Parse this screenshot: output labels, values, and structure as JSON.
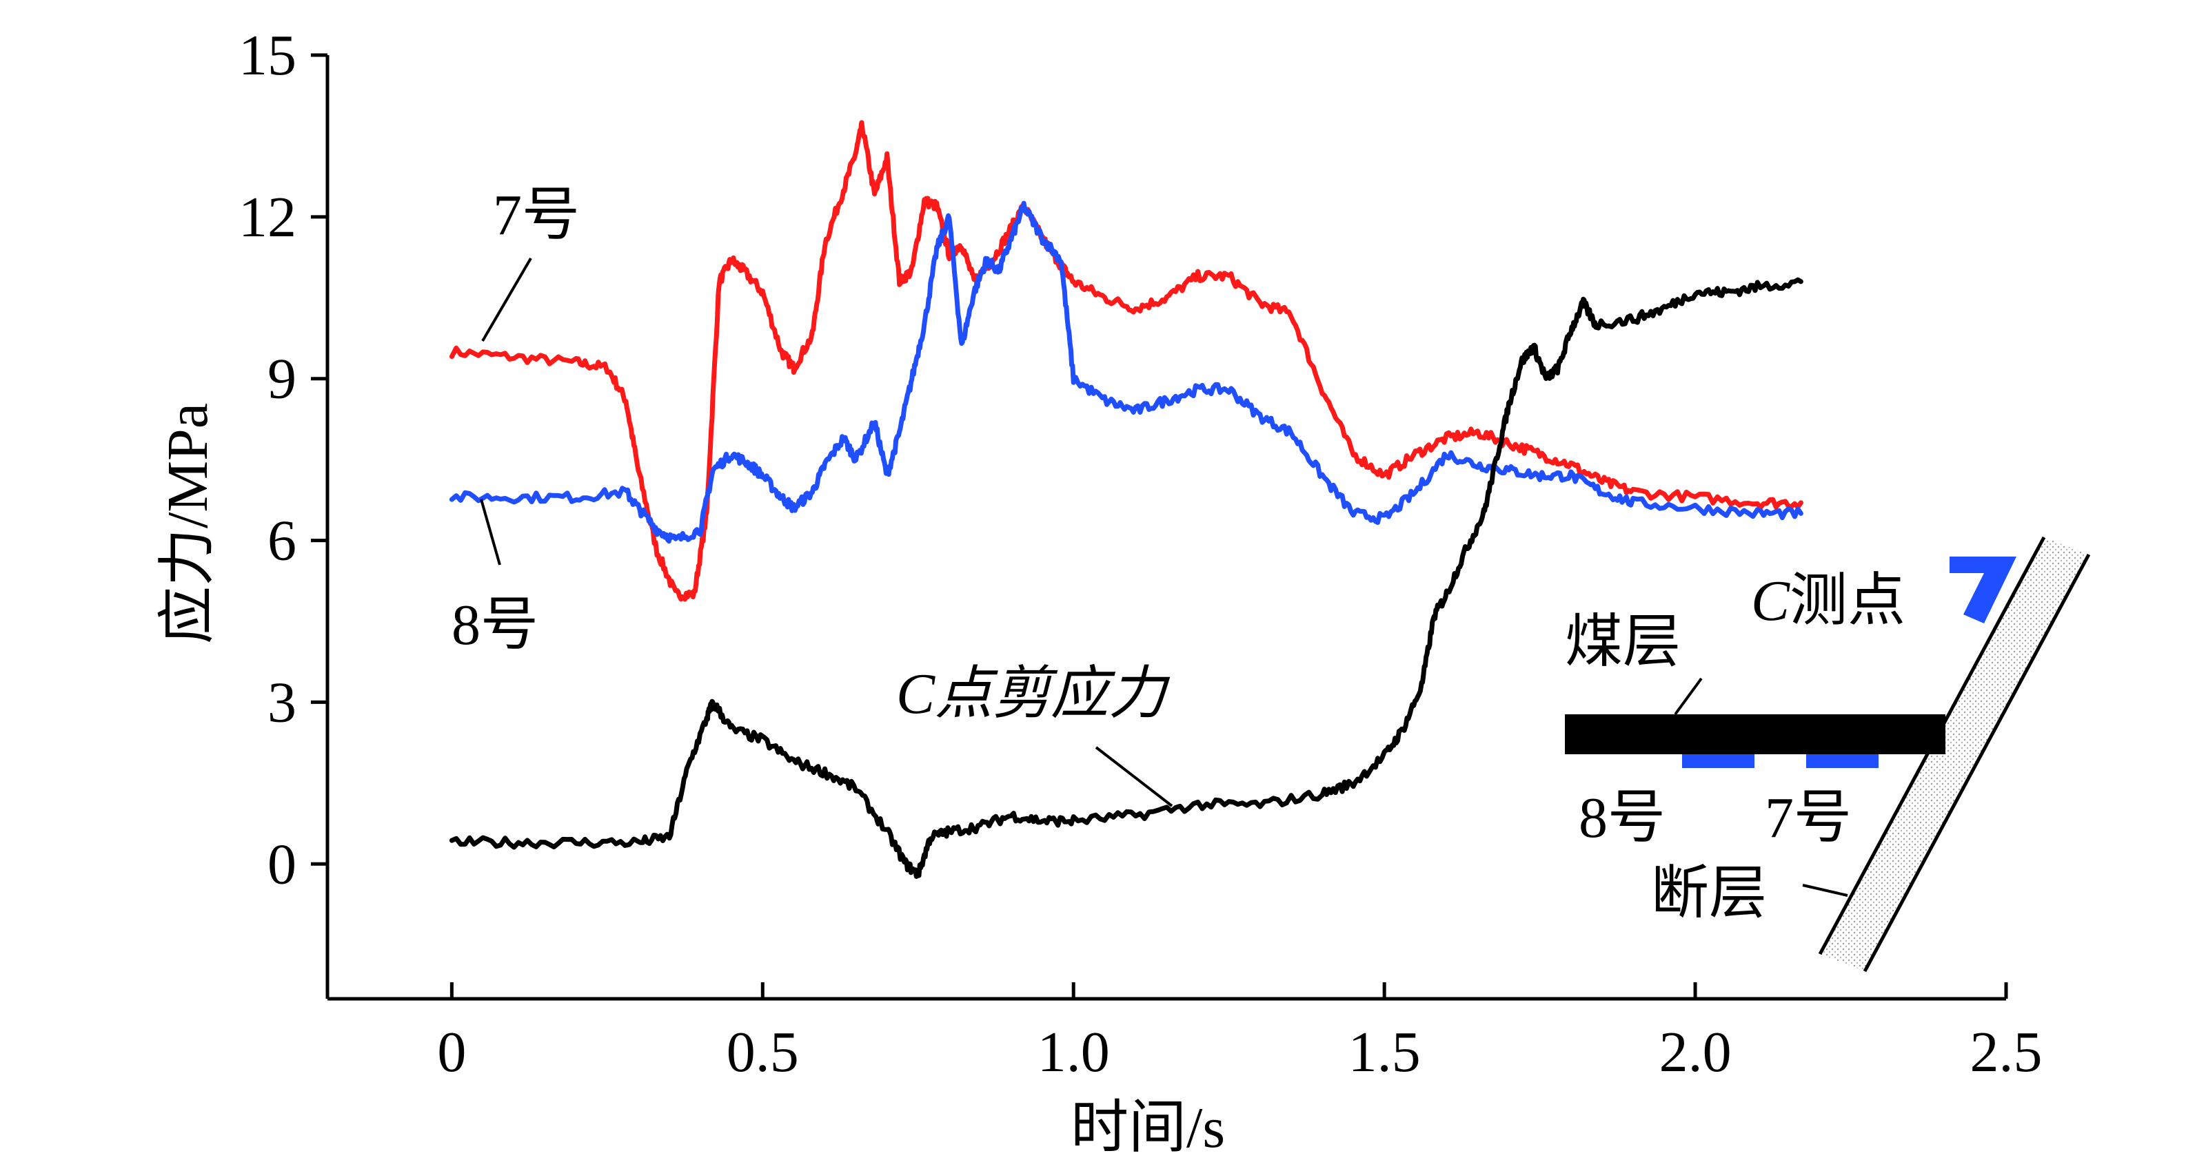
{
  "chart_data": {
    "type": "line",
    "xlabel": "时间/s",
    "ylabel": "应力/MPa",
    "xlim": [
      -0.2,
      2.5
    ],
    "ylim": [
      -2.5,
      15
    ],
    "xticks": [
      0,
      0.5,
      1.0,
      1.5,
      2.0,
      2.5
    ],
    "xtick_labels": [
      "0",
      "0.5",
      "1.0",
      "1.5",
      "2.0",
      "2.5"
    ],
    "yticks": [
      0,
      3,
      6,
      9,
      12,
      15
    ],
    "ytick_labels": [
      "0",
      "3",
      "6",
      "9",
      "12",
      "15"
    ],
    "grid": false,
    "series": [
      {
        "name": "7号",
        "color": "#ff1a1a",
        "x": [
          0,
          0.1,
          0.2,
          0.25,
          0.28,
          0.3,
          0.33,
          0.36,
          0.39,
          0.41,
          0.43,
          0.45,
          0.47,
          0.5,
          0.53,
          0.55,
          0.58,
          0.6,
          0.63,
          0.65,
          0.66,
          0.68,
          0.7,
          0.72,
          0.74,
          0.76,
          0.78,
          0.8,
          0.82,
          0.84,
          0.87,
          0.9,
          0.92,
          0.95,
          0.98,
          1.0,
          1.05,
          1.1,
          1.15,
          1.2,
          1.25,
          1.3,
          1.35,
          1.4,
          1.45,
          1.5,
          1.55,
          1.6,
          1.65,
          1.7,
          1.75,
          1.8,
          1.85,
          1.9,
          2.0,
          2.1,
          2.17
        ],
        "y": [
          9.5,
          9.4,
          9.3,
          9.2,
          8.6,
          7.3,
          5.8,
          5.0,
          5.0,
          6.5,
          10.8,
          11.2,
          11.0,
          10.6,
          9.5,
          9.2,
          9.8,
          11.5,
          12.5,
          13.2,
          13.7,
          12.4,
          13.1,
          10.8,
          11.0,
          12.3,
          12.2,
          11.3,
          11.5,
          10.8,
          11.2,
          11.8,
          12.2,
          11.6,
          11.1,
          10.8,
          10.5,
          10.3,
          10.5,
          10.9,
          10.9,
          10.4,
          10.2,
          8.8,
          7.6,
          7.2,
          7.6,
          7.9,
          8.0,
          7.8,
          7.6,
          7.4,
          7.1,
          6.9,
          6.8,
          6.7,
          6.7
        ]
      },
      {
        "name": "8号",
        "color": "#1f4fff",
        "x": [
          0,
          0.1,
          0.2,
          0.28,
          0.3,
          0.33,
          0.36,
          0.4,
          0.42,
          0.45,
          0.48,
          0.5,
          0.53,
          0.55,
          0.58,
          0.6,
          0.63,
          0.65,
          0.68,
          0.7,
          0.72,
          0.74,
          0.76,
          0.78,
          0.8,
          0.82,
          0.84,
          0.86,
          0.88,
          0.9,
          0.92,
          0.95,
          0.98,
          1.0,
          1.05,
          1.1,
          1.15,
          1.2,
          1.25,
          1.3,
          1.35,
          1.4,
          1.45,
          1.5,
          1.55,
          1.6,
          1.65,
          1.7,
          1.75,
          1.8,
          1.85,
          1.9,
          2.0,
          2.1,
          2.17
        ],
        "y": [
          6.8,
          6.8,
          6.8,
          6.9,
          6.6,
          6.2,
          6.0,
          6.2,
          7.3,
          7.6,
          7.4,
          7.2,
          6.8,
          6.6,
          6.9,
          7.4,
          7.9,
          7.5,
          8.2,
          7.2,
          8.0,
          9.0,
          10.0,
          11.4,
          12.0,
          9.6,
          10.6,
          11.2,
          11.0,
          11.6,
          12.2,
          11.6,
          11.2,
          9.0,
          8.6,
          8.4,
          8.6,
          8.8,
          8.8,
          8.3,
          8.0,
          7.2,
          6.5,
          6.4,
          6.9,
          7.6,
          7.4,
          7.3,
          7.2,
          7.2,
          6.9,
          6.7,
          6.6,
          6.5,
          6.5
        ]
      },
      {
        "name": "C点剪应力",
        "color": "#000000",
        "x": [
          0,
          0.1,
          0.2,
          0.3,
          0.35,
          0.38,
          0.41,
          0.42,
          0.45,
          0.5,
          0.55,
          0.6,
          0.65,
          0.7,
          0.73,
          0.75,
          0.77,
          0.8,
          0.85,
          0.9,
          0.95,
          1.0,
          1.1,
          1.2,
          1.3,
          1.4,
          1.45,
          1.5,
          1.53,
          1.56,
          1.58,
          1.6,
          1.63,
          1.66,
          1.68,
          1.7,
          1.72,
          1.74,
          1.76,
          1.78,
          1.8,
          1.82,
          1.84,
          1.9,
          1.95,
          2.0,
          2.05,
          2.1,
          2.17
        ],
        "y": [
          0.4,
          0.4,
          0.4,
          0.4,
          0.5,
          1.8,
          2.7,
          3.0,
          2.5,
          2.3,
          1.9,
          1.7,
          1.4,
          0.6,
          0.0,
          -0.2,
          0.5,
          0.6,
          0.7,
          0.9,
          0.8,
          0.8,
          0.9,
          1.1,
          1.1,
          1.3,
          1.5,
          2.0,
          2.5,
          3.3,
          4.6,
          5.0,
          5.8,
          6.5,
          7.5,
          8.5,
          9.3,
          9.6,
          9.0,
          9.2,
          9.9,
          10.4,
          10.0,
          10.1,
          10.3,
          10.6,
          10.6,
          10.7,
          10.8
        ]
      }
    ],
    "annotations": {
      "label_7": "7号",
      "label_8": "8号",
      "label_c": "C点剪应力"
    }
  },
  "inset": {
    "coal_seam": "煤层",
    "measure_point_prefix": "C",
    "measure_point_suffix": "测点",
    "sensor_8": "8号",
    "sensor_7": "7号",
    "fault": "断层",
    "sensor_color": "#1f4fff",
    "seam_color": "#000000"
  }
}
